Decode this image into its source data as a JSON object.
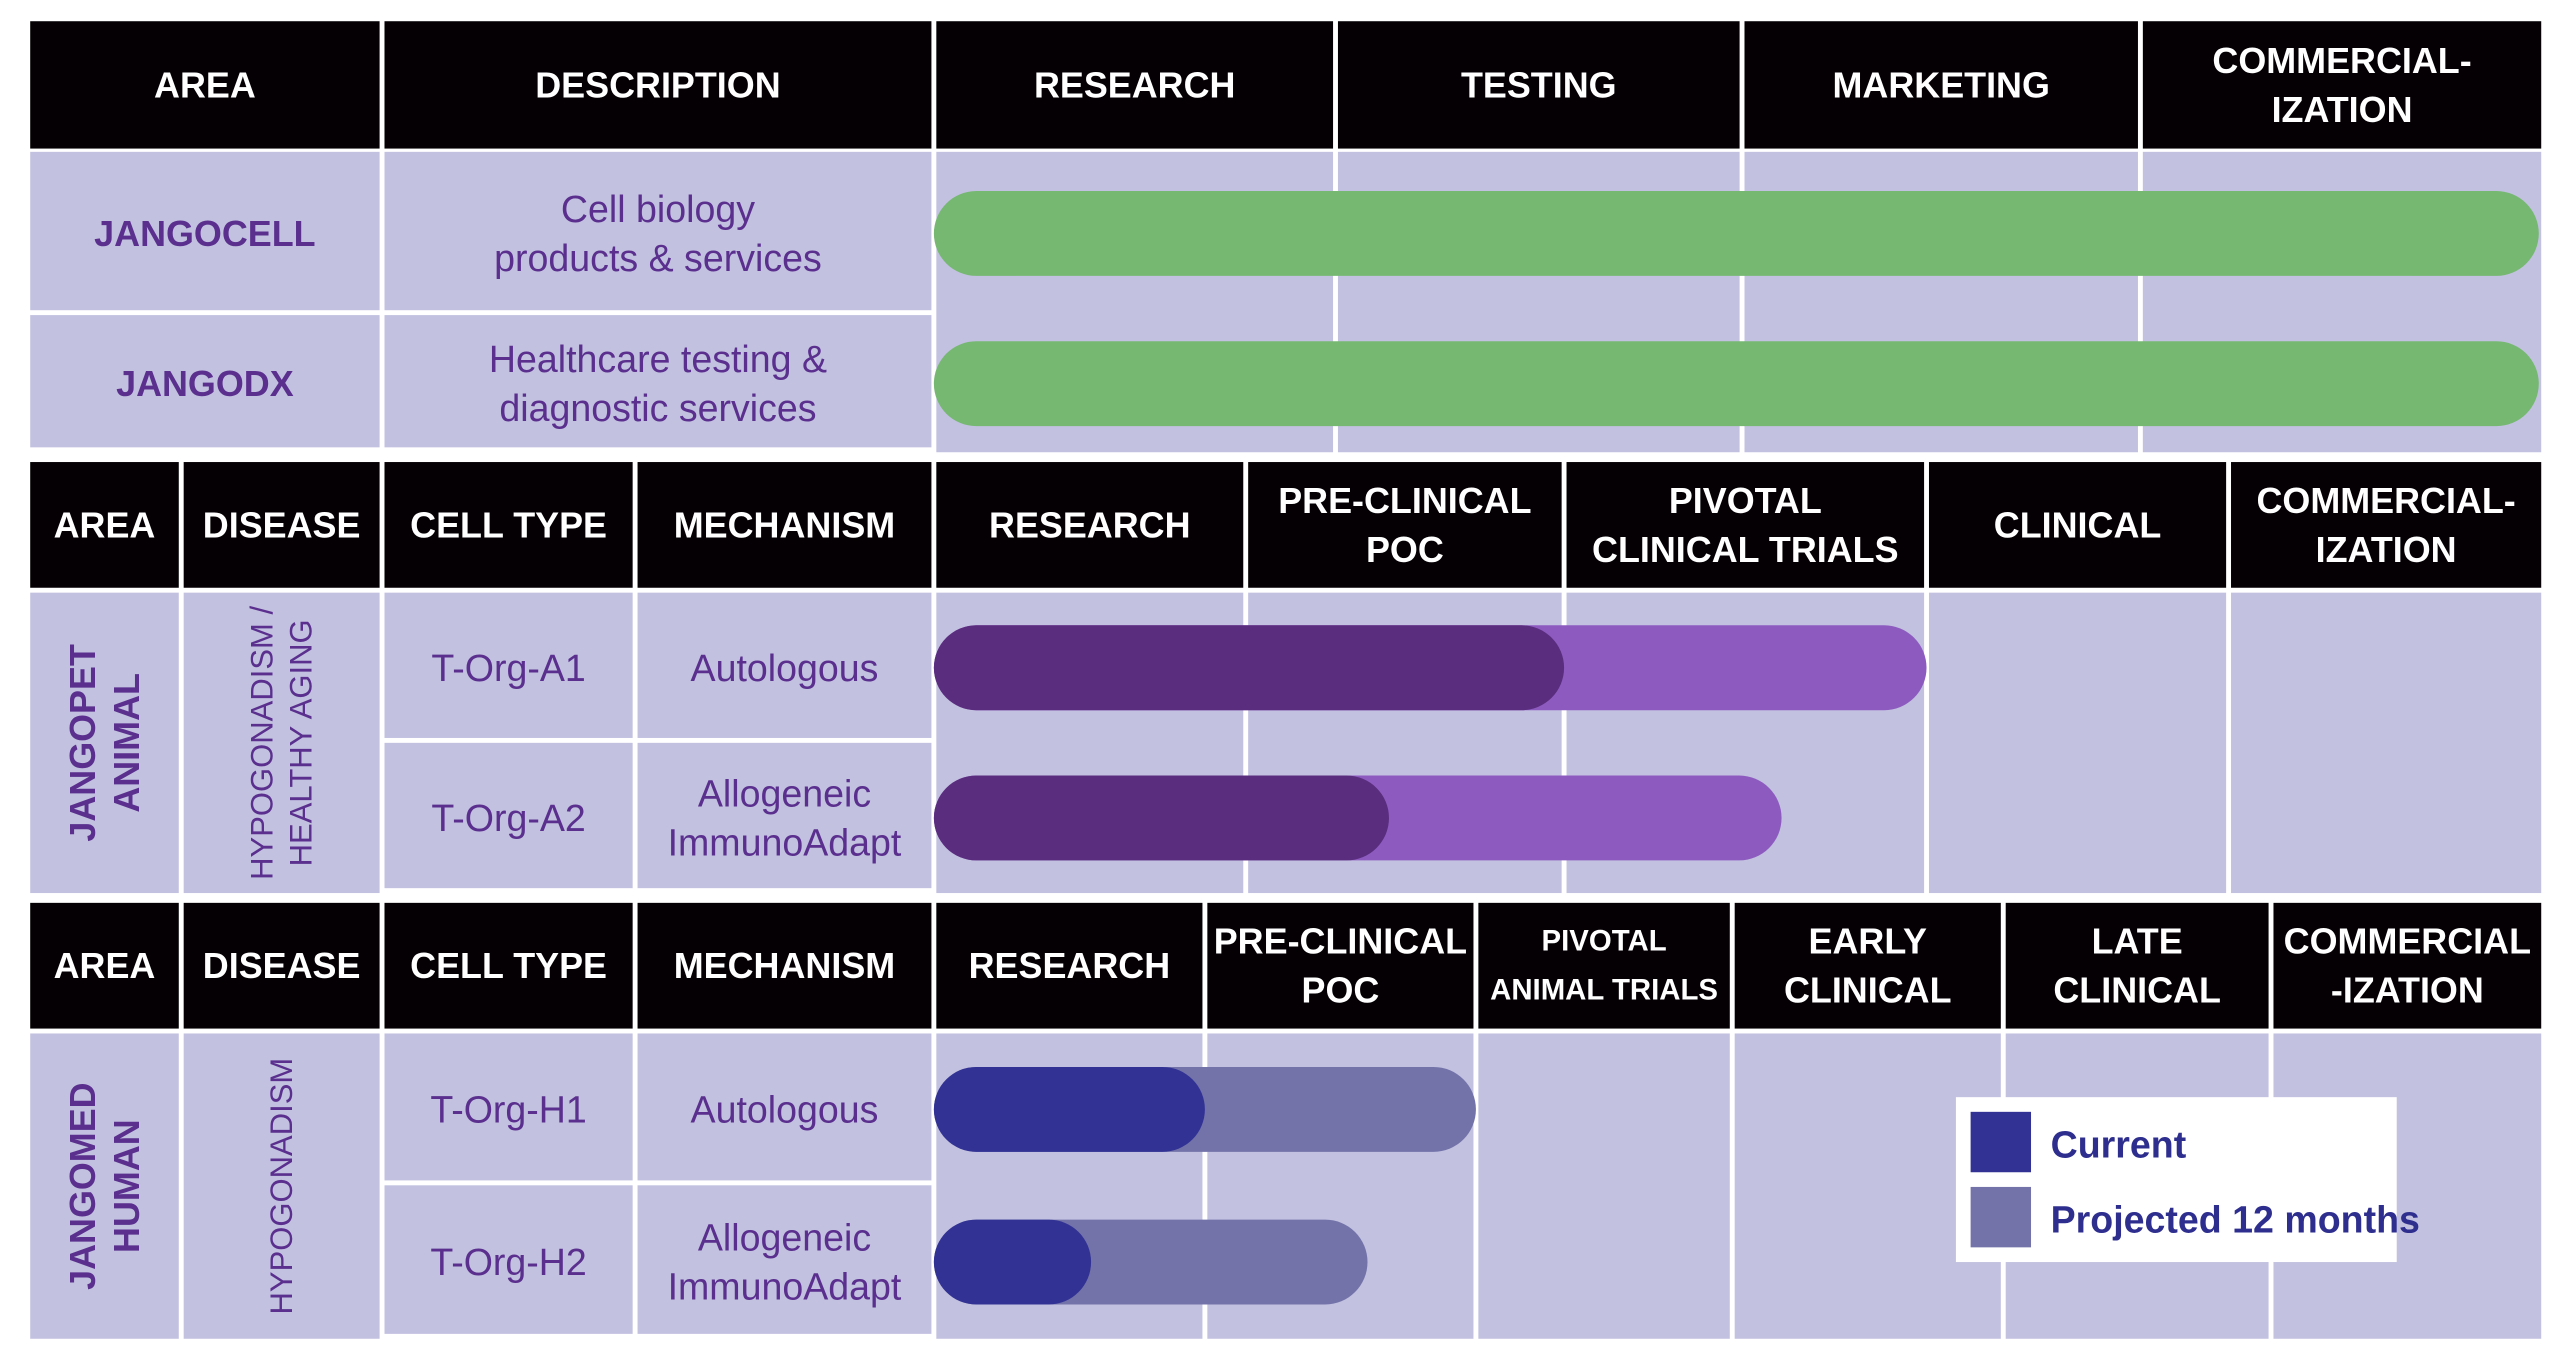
{
  "colors": {
    "header_bg": "#050004",
    "cell_bg": "#c2c1e0",
    "label_text": "#5a2f8e",
    "bar_green": "#76b872",
    "bar_animal_current": "#5a2d7e",
    "bar_animal_projected": "#8d5bbf",
    "bar_human_current": "#323295",
    "bar_human_projected": "#7373aa"
  },
  "section1": {
    "headers": [
      "AREA",
      "DESCRIPTION",
      "RESEARCH",
      "TESTING",
      "MARKETING",
      "COMMERCIAL-\nIZATION"
    ],
    "rows": [
      {
        "area": "JANGOCELL",
        "description": "Cell biology\nproducts & services",
        "progress": {
          "stage_fraction": 1.0
        }
      },
      {
        "area": "JANGODX",
        "description": "Healthcare testing &\ndiagnostic services",
        "progress": {
          "stage_fraction": 1.0
        }
      }
    ]
  },
  "section2": {
    "headers": [
      "AREA",
      "DISEASE",
      "CELL TYPE",
      "MECHANISM",
      "RESEARCH",
      "PRE-CLINICAL\nPOC",
      "PIVOTAL\nCLINICAL TRIALS",
      "CLINICAL",
      "COMMERCIAL-\nIZATION"
    ],
    "area": "JANGOPET\nANIMAL",
    "disease": "HYPOGONADISM /\nHEALTHY AGING",
    "rows": [
      {
        "cell_type": "T-Org-A1",
        "mechanism": "Autologous",
        "current_stages": 2.0,
        "projected_stages": 3.0
      },
      {
        "cell_type": "T-Org-A2",
        "mechanism": "Allogeneic\nImmunoAdapt",
        "current_stages": 1.45,
        "projected_stages": 2.6
      }
    ]
  },
  "section3": {
    "headers": [
      "AREA",
      "DISEASE",
      "CELL TYPE",
      "MECHANISM",
      "RESEARCH",
      "PRE-CLINICAL\nPOC",
      "PIVOTAL\nANIMAL TRIALS",
      "EARLY\nCLINICAL",
      "LATE\nCLINICAL",
      "COMMERCIAL\n-IZATION"
    ],
    "area": "JANGOMED\nHUMAN",
    "disease": "HYPOGONADISM",
    "rows": [
      {
        "cell_type": "T-Org-H1",
        "mechanism": "Autologous",
        "current_stages": 1.0,
        "projected_stages": 2.0
      },
      {
        "cell_type": "T-Org-H2",
        "mechanism": "Allogeneic\nImmunoAdapt",
        "current_stages": 0.58,
        "projected_stages": 1.6
      }
    ]
  },
  "legend": {
    "items": [
      {
        "label": "Current",
        "color": "#323295"
      },
      {
        "label": "Projected 12 months",
        "color": "#7373aa"
      }
    ]
  }
}
